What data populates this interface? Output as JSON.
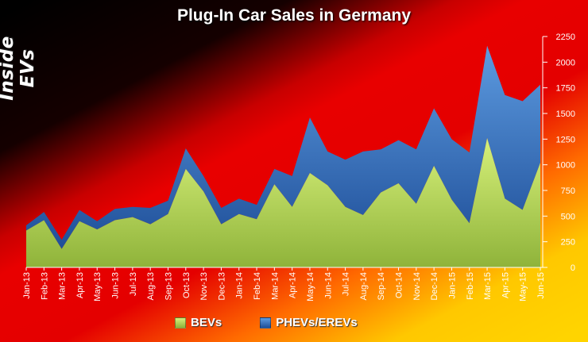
{
  "logo_text": "Inside EVs",
  "colors": {
    "bevs": "#b9e04e",
    "phevs": "#3a76c2",
    "axis_text": "#ffffff"
  },
  "chart_data": {
    "type": "area",
    "stacked": true,
    "title": "Plug-In Car Sales in Germany",
    "categories": [
      "Jan-13",
      "Feb-13",
      "Mar-13",
      "Apr-13",
      "May-13",
      "Jun-13",
      "Jul-13",
      "Aug-13",
      "Sep-13",
      "Oct-13",
      "Nov-13",
      "Dec-13",
      "Jan-14",
      "Feb-14",
      "Mar-14",
      "Apr-14",
      "May-14",
      "Jun-14",
      "Jul-14",
      "Aug-14",
      "Sep-14",
      "Oct-14",
      "Nov-14",
      "Dec-14",
      "Jan-15",
      "Feb-15",
      "Mar-15",
      "Apr-15",
      "May-15",
      "Jun-15"
    ],
    "series": [
      {
        "name": "BEVs",
        "values": [
          360,
          460,
          180,
          450,
          370,
          460,
          490,
          420,
          520,
          960,
          740,
          420,
          520,
          470,
          810,
          590,
          920,
          800,
          590,
          510,
          730,
          820,
          620,
          990,
          660,
          430,
          1260,
          670,
          560,
          1020
        ]
      },
      {
        "name": "PHEVs/EREVs",
        "values": [
          50,
          80,
          90,
          110,
          80,
          110,
          100,
          160,
          130,
          200,
          150,
          160,
          150,
          140,
          150,
          300,
          540,
          330,
          460,
          620,
          420,
          420,
          530,
          560,
          590,
          690,
          900,
          1010,
          1060,
          760
        ]
      }
    ],
    "yticks": [
      0,
      250,
      500,
      750,
      1000,
      1250,
      1500,
      1750,
      2000,
      2250
    ],
    "ylim": [
      0,
      2250
    ],
    "grid": false,
    "legend_position": "bottom",
    "ylabel": "",
    "xlabel": ""
  }
}
